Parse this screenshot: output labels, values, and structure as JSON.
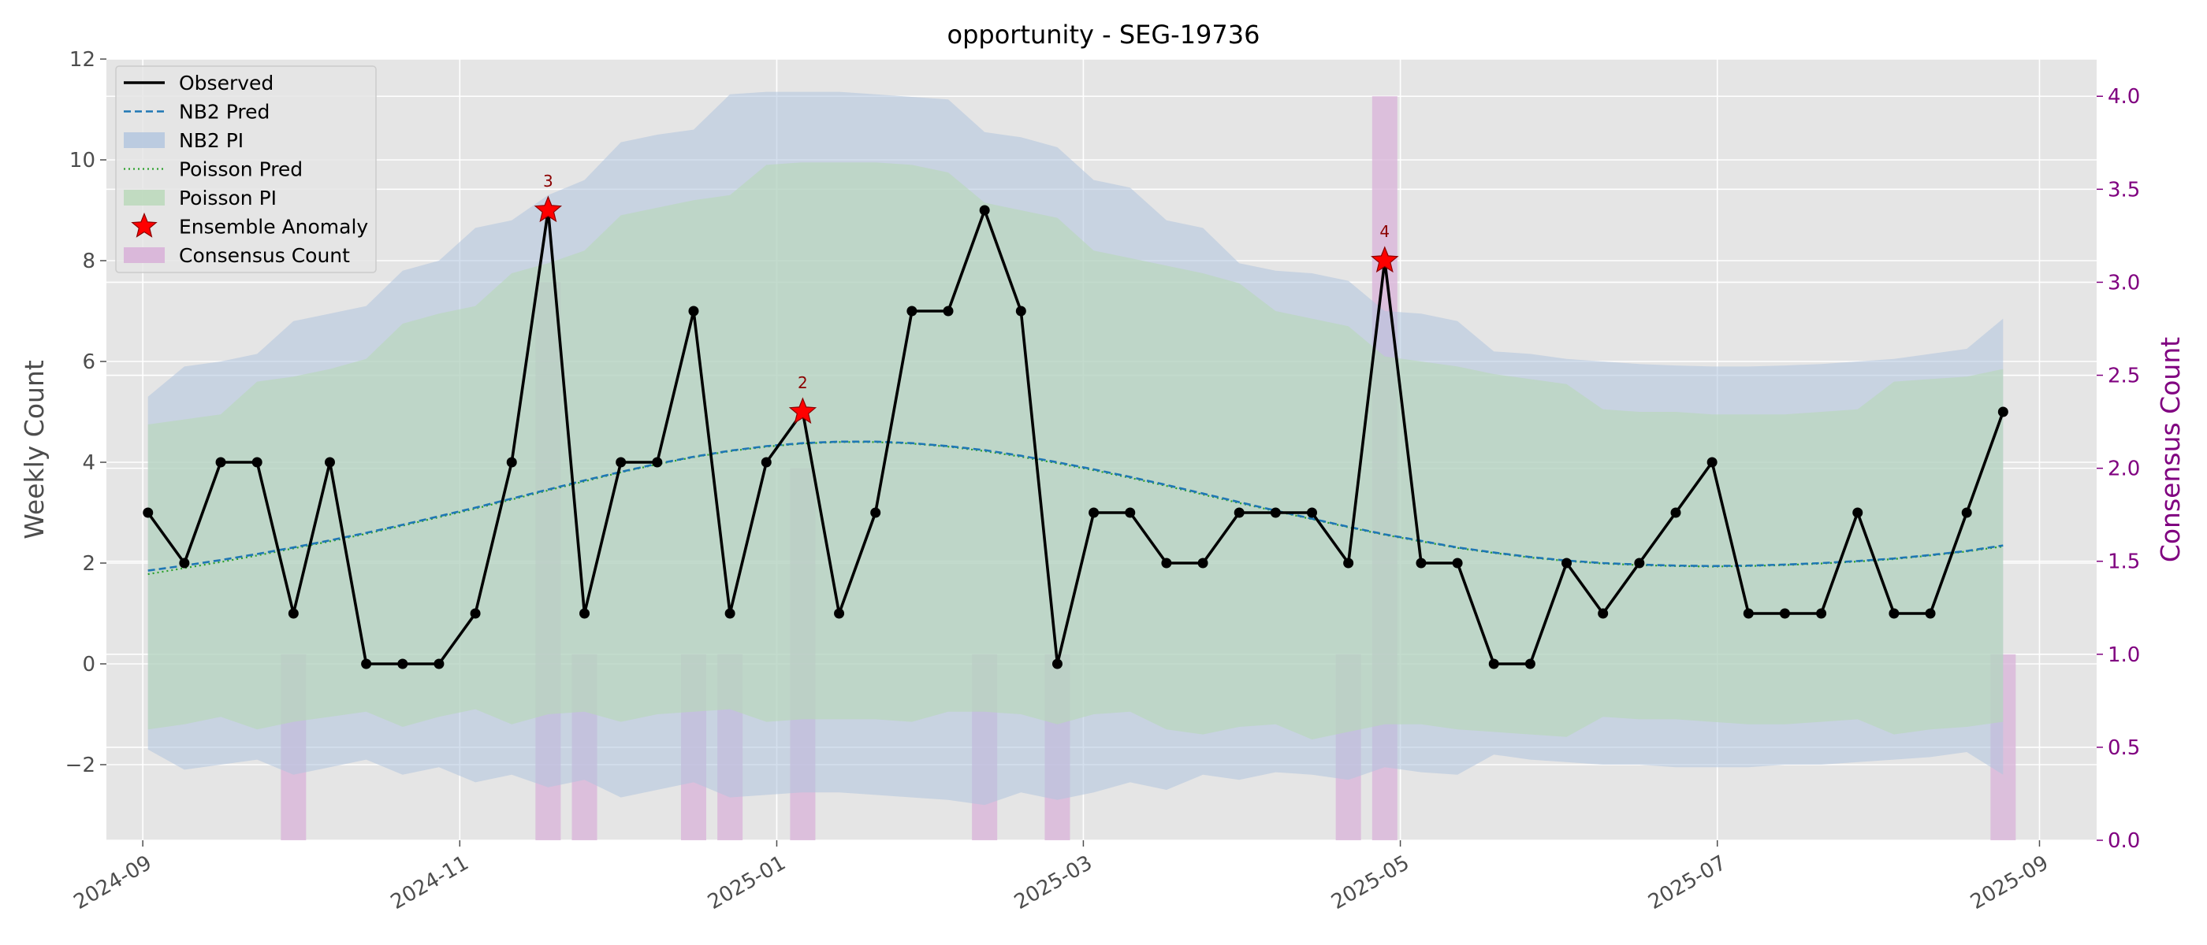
{
  "chart_data": {
    "type": "line",
    "title": "opportunity - SEG-19736",
    "ylabel": "Weekly Count",
    "y2label": "Consensus Count",
    "ylim": [
      -3.5,
      12
    ],
    "y2lim": [
      0,
      4.2
    ],
    "xlim": [
      "2024-08-25",
      "2025-09-12"
    ],
    "yticks": [
      -2,
      0,
      2,
      4,
      6,
      8,
      10,
      12
    ],
    "ytick_labels": [
      "−2",
      "0",
      "2",
      "4",
      "6",
      "8",
      "10",
      "12"
    ],
    "y2ticks": [
      0,
      0.5,
      1,
      1.5,
      2,
      2.5,
      3,
      3.5,
      4
    ],
    "y2tick_labels": [
      "0.0",
      "0.5",
      "1.0",
      "1.5",
      "2.0",
      "2.5",
      "3.0",
      "3.5",
      "4.0"
    ],
    "xticks": [
      "2024-09-01",
      "2024-11-01",
      "2025-01-01",
      "2025-03-01",
      "2025-05-01",
      "2025-07-01",
      "2025-09-01"
    ],
    "xtick_labels": [
      "2024-09",
      "2024-11",
      "2025-01",
      "2025-03",
      "2025-05",
      "2025-07",
      "2025-09"
    ],
    "grid": true,
    "legend_position": "top-left",
    "legend": [
      "Observed",
      "NB2 Pred",
      "NB2 PI",
      "Poisson Pred",
      "Poisson PI",
      "Ensemble Anomaly",
      "Consensus Count"
    ],
    "dates": [
      "2024-09-02",
      "2024-09-09",
      "2024-09-16",
      "2024-09-23",
      "2024-09-30",
      "2024-10-07",
      "2024-10-14",
      "2024-10-21",
      "2024-10-28",
      "2024-11-04",
      "2024-11-11",
      "2024-11-18",
      "2024-11-25",
      "2024-12-02",
      "2024-12-09",
      "2024-12-16",
      "2024-12-23",
      "2024-12-30",
      "2025-01-06",
      "2025-01-13",
      "2025-01-20",
      "2025-01-27",
      "2025-02-03",
      "2025-02-10",
      "2025-02-17",
      "2025-02-24",
      "2025-03-03",
      "2025-03-10",
      "2025-03-17",
      "2025-03-24",
      "2025-03-31",
      "2025-04-07",
      "2025-04-14",
      "2025-04-21",
      "2025-04-28",
      "2025-05-05",
      "2025-05-12",
      "2025-05-19",
      "2025-05-26",
      "2025-06-02",
      "2025-06-09",
      "2025-06-16",
      "2025-06-23",
      "2025-06-30",
      "2025-07-07",
      "2025-07-14",
      "2025-07-21",
      "2025-07-28",
      "2025-08-04",
      "2025-08-11",
      "2025-08-18",
      "2025-08-25"
    ],
    "series": [
      {
        "name": "Observed",
        "values": [
          3,
          2,
          4,
          4,
          1,
          4,
          0,
          0,
          0,
          1,
          4,
          9,
          1,
          4,
          4,
          7,
          1,
          4,
          5,
          1,
          3,
          7,
          7,
          9,
          7,
          0,
          3,
          3,
          2,
          2,
          3,
          3,
          3,
          2,
          8,
          2,
          2,
          0,
          0,
          2,
          1,
          2,
          3,
          4,
          1,
          1,
          1,
          3,
          1,
          1,
          3,
          5
        ]
      },
      {
        "name": "NB2 Pred",
        "values": [
          1.85,
          1.95,
          2.06,
          2.18,
          2.31,
          2.45,
          2.6,
          2.76,
          2.93,
          3.1,
          3.28,
          3.46,
          3.64,
          3.81,
          3.97,
          4.11,
          4.23,
          4.32,
          4.38,
          4.41,
          4.41,
          4.38,
          4.32,
          4.24,
          4.13,
          4.0,
          3.86,
          3.71,
          3.55,
          3.38,
          3.21,
          3.04,
          2.88,
          2.72,
          2.57,
          2.44,
          2.31,
          2.21,
          2.12,
          2.05,
          2.0,
          1.97,
          1.95,
          1.94,
          1.95,
          1.97,
          2.0,
          2.04,
          2.09,
          2.16,
          2.24,
          2.35
        ]
      },
      {
        "name": "NB2 PI",
        "lower": [
          -1.7,
          -2.1,
          -2.0,
          -1.9,
          -2.2,
          -2.05,
          -1.9,
          -2.2,
          -2.05,
          -2.35,
          -2.2,
          -2.45,
          -2.3,
          -2.65,
          -2.5,
          -2.35,
          -2.65,
          -2.6,
          -2.55,
          -2.55,
          -2.6,
          -2.65,
          -2.7,
          -2.8,
          -2.55,
          -2.7,
          -2.55,
          -2.35,
          -2.5,
          -2.2,
          -2.3,
          -2.15,
          -2.2,
          -2.3,
          -2.05,
          -2.15,
          -2.2,
          -1.8,
          -1.9,
          -1.95,
          -2.0,
          -2.0,
          -2.05,
          -2.05,
          -2.05,
          -2.0,
          -2.0,
          -1.95,
          -1.9,
          -1.85,
          -1.75,
          -2.2
        ],
        "upper": [
          5.3,
          5.9,
          6.0,
          6.15,
          6.8,
          6.95,
          7.1,
          7.8,
          8.0,
          8.65,
          8.8,
          9.3,
          9.6,
          10.35,
          10.5,
          10.6,
          11.3,
          11.35,
          11.35,
          11.35,
          11.3,
          11.25,
          11.2,
          10.55,
          10.45,
          10.25,
          9.6,
          9.45,
          8.8,
          8.65,
          7.95,
          7.8,
          7.75,
          7.6,
          7.0,
          6.95,
          6.8,
          6.2,
          6.15,
          6.05,
          6.0,
          5.95,
          5.92,
          5.9,
          5.9,
          5.92,
          5.95,
          6.0,
          6.05,
          6.15,
          6.25,
          6.85
        ]
      },
      {
        "name": "Poisson Pred",
        "values": [
          1.78,
          1.9,
          2.02,
          2.15,
          2.29,
          2.43,
          2.58,
          2.74,
          2.91,
          3.08,
          3.26,
          3.44,
          3.62,
          3.8,
          3.96,
          4.1,
          4.22,
          4.31,
          4.37,
          4.4,
          4.4,
          4.37,
          4.31,
          4.22,
          4.11,
          3.98,
          3.84,
          3.69,
          3.53,
          3.36,
          3.19,
          3.03,
          2.87,
          2.71,
          2.56,
          2.43,
          2.3,
          2.2,
          2.11,
          2.04,
          1.99,
          1.96,
          1.94,
          1.93,
          1.94,
          1.96,
          1.99,
          2.03,
          2.08,
          2.15,
          2.23,
          2.33
        ]
      },
      {
        "name": "Poisson PI",
        "lower": [
          -1.3,
          -1.2,
          -1.05,
          -1.3,
          -1.15,
          -1.05,
          -0.95,
          -1.25,
          -1.05,
          -0.9,
          -1.2,
          -1.0,
          -0.95,
          -1.15,
          -1.0,
          -0.95,
          -0.9,
          -1.15,
          -1.1,
          -1.1,
          -1.1,
          -1.15,
          -0.95,
          -0.95,
          -1.0,
          -1.2,
          -1.0,
          -0.95,
          -1.3,
          -1.4,
          -1.25,
          -1.2,
          -1.5,
          -1.35,
          -1.2,
          -1.2,
          -1.3,
          -1.35,
          -1.4,
          -1.45,
          -1.05,
          -1.1,
          -1.1,
          -1.15,
          -1.2,
          -1.2,
          -1.15,
          -1.1,
          -1.4,
          -1.3,
          -1.25,
          -1.15
        ],
        "upper": [
          4.75,
          4.85,
          4.95,
          5.6,
          5.7,
          5.85,
          6.05,
          6.75,
          6.95,
          7.1,
          7.75,
          7.95,
          8.2,
          8.9,
          9.05,
          9.2,
          9.3,
          9.9,
          9.95,
          9.95,
          9.95,
          9.9,
          9.75,
          9.15,
          9.0,
          8.85,
          8.2,
          8.05,
          7.9,
          7.75,
          7.55,
          7.0,
          6.85,
          6.7,
          6.1,
          6.0,
          5.9,
          5.75,
          5.65,
          5.55,
          5.05,
          5.0,
          5.0,
          4.95,
          4.95,
          4.95,
          5.0,
          5.05,
          5.6,
          5.65,
          5.7,
          5.85
        ]
      }
    ],
    "anomalies": [
      {
        "date": "2024-11-18",
        "value": 9,
        "label": "3"
      },
      {
        "date": "2025-01-06",
        "value": 5,
        "label": "2"
      },
      {
        "date": "2025-04-28",
        "value": 8,
        "label": "4"
      }
    ],
    "consensus": [
      {
        "date": "2024-09-30",
        "count": 1
      },
      {
        "date": "2024-11-18",
        "count": 3
      },
      {
        "date": "2024-11-25",
        "count": 1
      },
      {
        "date": "2024-12-16",
        "count": 1
      },
      {
        "date": "2024-12-23",
        "count": 1
      },
      {
        "date": "2025-01-06",
        "count": 2
      },
      {
        "date": "2025-02-10",
        "count": 1
      },
      {
        "date": "2025-02-24",
        "count": 1
      },
      {
        "date": "2025-04-21",
        "count": 1
      },
      {
        "date": "2025-04-28",
        "count": 4
      },
      {
        "date": "2025-08-25",
        "count": 1
      }
    ],
    "colors": {
      "observed": "#000000",
      "nb2": "#1f77b4",
      "nb2_band": "#b0c4de",
      "poisson": "#2ca02c",
      "poisson_band": "#b8d8b8",
      "anomaly": "#ff0000",
      "consensus": "#d8b2d8",
      "secondary_axis": "#800080",
      "plot_background": "#e5e5e5"
    }
  }
}
